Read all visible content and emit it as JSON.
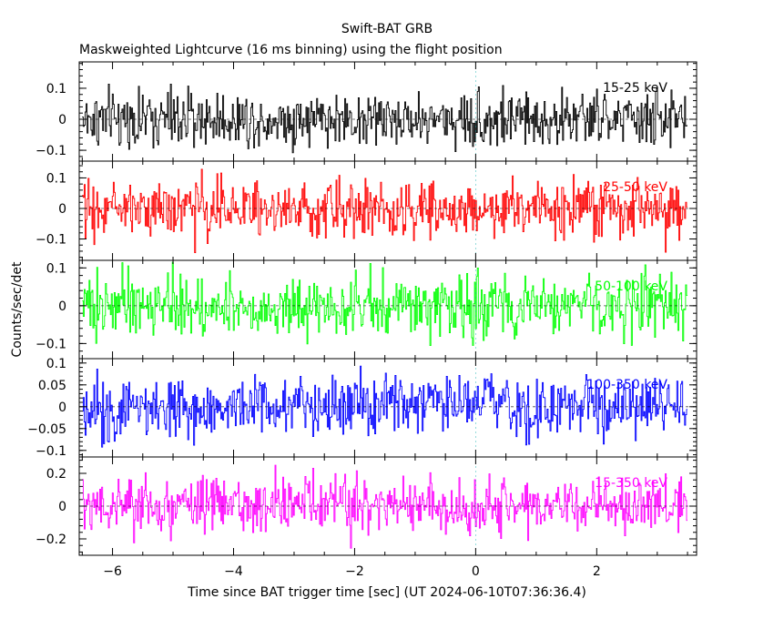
{
  "title": "Swift-BAT GRB",
  "subtitle": "Maskweighted Lightcurve (16 ms binning) using the flight position",
  "chart_data": {
    "type": "line",
    "title": "Swift-BAT GRB",
    "subtitle": "Maskweighted Lightcurve (16 ms binning) using the flight position",
    "xlabel": "Time since BAT trigger time [sec] (UT 2024-06-10T07:36:36.4)",
    "ylabel": "Counts/sec/det",
    "xlim": [
      -6.55,
      3.65
    ],
    "xticks": [
      -6,
      -4,
      -2,
      0,
      2
    ],
    "xtick_labels": [
      "−6",
      "−4",
      "−2",
      "0",
      "2"
    ],
    "data_range_x": [
      -6.5,
      3.5
    ],
    "bin_width_sec": 0.016,
    "trigger_marker_x": 0,
    "grid": false,
    "panels": [
      {
        "name": "15-25 keV",
        "color": "#000000",
        "ylim": [
          -0.135,
          0.185
        ],
        "yticks": [
          -0.1,
          0,
          0.1
        ],
        "ytick_labels": [
          "−0.1",
          "0",
          "0.1"
        ],
        "mean": 0.0,
        "std": 0.045
      },
      {
        "name": "25-50 keV",
        "color": "#ff0000",
        "ylim": [
          -0.17,
          0.155
        ],
        "yticks": [
          -0.1,
          0,
          0.1
        ],
        "ytick_labels": [
          "−0.1",
          "0",
          "0.1"
        ],
        "mean": 0.0,
        "std": 0.045
      },
      {
        "name": "50-100 keV",
        "color": "#00ff00",
        "ylim": [
          -0.14,
          0.12
        ],
        "yticks": [
          -0.1,
          0,
          0.1
        ],
        "ytick_labels": [
          "−0.1",
          "0",
          "0.1"
        ],
        "mean": 0.0,
        "std": 0.04
      },
      {
        "name": "100-350 keV",
        "color": "#0000ff",
        "ylim": [
          -0.115,
          0.11
        ],
        "yticks": [
          -0.1,
          -0.05,
          0,
          0.05,
          0.1
        ],
        "ytick_labels": [
          "−0.1",
          "−0.05",
          "0",
          "0.05",
          "0.1"
        ],
        "mean": 0.0,
        "std": 0.035
      },
      {
        "name": "15-350 keV",
        "color": "#ff00ff",
        "ylim": [
          -0.3,
          0.3
        ],
        "yticks": [
          -0.2,
          0,
          0.2
        ],
        "ytick_labels": [
          "−0.2",
          "0",
          "0.2"
        ],
        "mean": 0.0,
        "std": 0.085
      }
    ]
  }
}
